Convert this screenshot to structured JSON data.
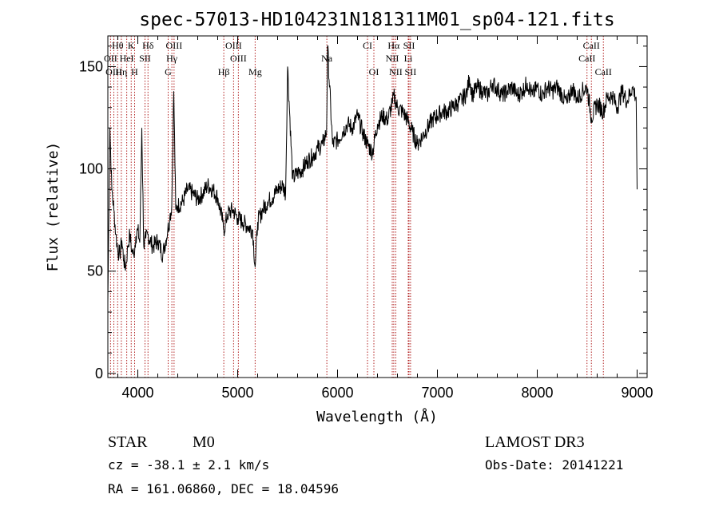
{
  "chart_data": {
    "type": "line",
    "title": "spec-57013-HD104231N181311M01_sp04-121.fits",
    "xlabel": "Wavelength (Å)",
    "ylabel": "Flux (relative)",
    "xlim": [
      3700,
      9100
    ],
    "ylim": [
      -2,
      165
    ],
    "xticks": [
      4000,
      5000,
      6000,
      7000,
      8000,
      9000
    ],
    "yticks": [
      0,
      50,
      100,
      150
    ],
    "series": [
      {
        "name": "flux",
        "x": [
          3700,
          3720,
          3740,
          3760,
          3780,
          3800,
          3820,
          3840,
          3860,
          3880,
          3900,
          3920,
          3940,
          3960,
          3980,
          4000,
          4020,
          4040,
          4060,
          4080,
          4100,
          4150,
          4200,
          4250,
          4300,
          4320,
          4340,
          4360,
          4380,
          4400,
          4450,
          4500,
          4550,
          4600,
          4650,
          4700,
          4750,
          4800,
          4850,
          4861,
          4900,
          4950,
          5000,
          5050,
          5100,
          5150,
          5175,
          5200,
          5250,
          5300,
          5350,
          5400,
          5450,
          5480,
          5500,
          5550,
          5600,
          5650,
          5700,
          5750,
          5800,
          5850,
          5890,
          5900,
          5950,
          6000,
          6050,
          6100,
          6150,
          6200,
          6250,
          6300,
          6350,
          6400,
          6450,
          6500,
          6550,
          6563,
          6600,
          6650,
          6700,
          6750,
          6800,
          6850,
          6900,
          6950,
          7000,
          7050,
          7100,
          7150,
          7200,
          7250,
          7300,
          7320,
          7350,
          7400,
          7450,
          7500,
          7550,
          7600,
          7650,
          7700,
          7750,
          7800,
          7850,
          7900,
          7950,
          8000,
          8050,
          8100,
          8150,
          8200,
          8250,
          8300,
          8350,
          8400,
          8450,
          8498,
          8542,
          8600,
          8662,
          8700,
          8750,
          8800,
          8850,
          8900,
          8950,
          8990,
          9000
        ],
        "y": [
          35,
          120,
          90,
          80,
          68,
          60,
          58,
          65,
          55,
          52,
          62,
          68,
          60,
          58,
          67,
          70,
          64,
          120,
          62,
          66,
          68,
          62,
          65,
          58,
          70,
          76,
          82,
          138,
          80,
          82,
          84,
          90,
          88,
          85,
          88,
          92,
          90,
          86,
          74,
          70,
          78,
          80,
          76,
          74,
          72,
          70,
          52,
          74,
          80,
          84,
          86,
          90,
          92,
          88,
          150,
          95,
          98,
          100,
          104,
          106,
          110,
          112,
          118,
          160,
          112,
          114,
          118,
          122,
          120,
          126,
          118,
          112,
          108,
          122,
          126,
          124,
          132,
          136,
          130,
          128,
          124,
          118,
          112,
          116,
          120,
          124,
          126,
          128,
          128,
          130,
          132,
          134,
          138,
          145,
          136,
          140,
          138,
          136,
          142,
          139,
          136,
          138,
          140,
          136,
          138,
          142,
          136,
          140,
          136,
          140,
          138,
          140,
          136,
          132,
          140,
          134,
          138,
          140,
          125,
          132,
          128,
          135,
          136,
          130,
          138,
          133,
          140,
          135,
          90
        ]
      }
    ],
    "lines": [
      {
        "label": "Hθ",
        "wl": 3798,
        "row": 0
      },
      {
        "label": "K",
        "wl": 3934,
        "row": 0
      },
      {
        "label": "Hδ",
        "wl": 4102,
        "row": 0
      },
      {
        "label": "OIII",
        "wl": 4363,
        "row": 0
      },
      {
        "label": "OIII",
        "wl": 4959,
        "row": 0
      },
      {
        "label": "CI",
        "wl": 6300,
        "row": 0
      },
      {
        "label": "Hα",
        "wl": 6563,
        "row": 0
      },
      {
        "label": "SII",
        "wl": 6716,
        "row": 0
      },
      {
        "label": "CaII",
        "wl": 8542,
        "row": 0
      },
      {
        "label": "OII",
        "wl": 3727,
        "row": 1
      },
      {
        "label": "HeI",
        "wl": 3889,
        "row": 1
      },
      {
        "label": "SII",
        "wl": 4072,
        "row": 1
      },
      {
        "label": "Hγ",
        "wl": 4341,
        "row": 1
      },
      {
        "label": "OIII",
        "wl": 5007,
        "row": 1
      },
      {
        "label": "Na",
        "wl": 5893,
        "row": 1
      },
      {
        "label": "NII",
        "wl": 6548,
        "row": 1
      },
      {
        "label": "Li",
        "wl": 6708,
        "row": 1
      },
      {
        "label": "CaII",
        "wl": 8498,
        "row": 1
      },
      {
        "label": "OIII",
        "wl": 3760,
        "row": 2
      },
      {
        "label": "Hη",
        "wl": 3835,
        "row": 2
      },
      {
        "label": "H",
        "wl": 3968,
        "row": 2
      },
      {
        "label": "G",
        "wl": 4304,
        "row": 2
      },
      {
        "label": "Hβ",
        "wl": 4861,
        "row": 2
      },
      {
        "label": "Mg",
        "wl": 5175,
        "row": 2
      },
      {
        "label": "OI",
        "wl": 6364,
        "row": 2
      },
      {
        "label": "NII",
        "wl": 6583,
        "row": 2
      },
      {
        "label": "SII",
        "wl": 6731,
        "row": 2
      },
      {
        "label": "CaII",
        "wl": 8662,
        "row": 2
      }
    ],
    "line_color": "#b22222"
  },
  "info": {
    "class": "STAR",
    "subclass": "M0",
    "survey": "LAMOST DR3",
    "cz": "cz = -38.1 ± 2.1 km/s",
    "obs_date": "Obs-Date: 20141221",
    "radec": "RA = 161.06860, DEC =  18.04596"
  }
}
